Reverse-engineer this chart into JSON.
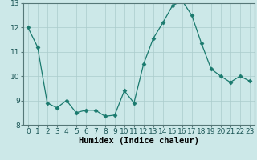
{
  "x": [
    0,
    1,
    2,
    3,
    4,
    5,
    6,
    7,
    8,
    9,
    10,
    11,
    12,
    13,
    14,
    15,
    16,
    17,
    18,
    19,
    20,
    21,
    22,
    23
  ],
  "y": [
    12.0,
    11.2,
    8.9,
    8.7,
    9.0,
    8.5,
    8.6,
    8.6,
    8.35,
    8.4,
    9.4,
    8.9,
    10.5,
    11.55,
    12.2,
    12.9,
    13.1,
    12.5,
    11.35,
    10.3,
    10.0,
    9.75,
    10.0,
    9.8
  ],
  "line_color": "#1a7a6e",
  "marker": "D",
  "marker_size": 2.5,
  "bg_color": "#cce8e8",
  "grid_color": "#aacccc",
  "xlabel": "Humidex (Indice chaleur)",
  "xlim": [
    -0.5,
    23.5
  ],
  "ylim": [
    8,
    13
  ],
  "yticks": [
    8,
    9,
    10,
    11,
    12,
    13
  ],
  "xticks": [
    0,
    1,
    2,
    3,
    4,
    5,
    6,
    7,
    8,
    9,
    10,
    11,
    12,
    13,
    14,
    15,
    16,
    17,
    18,
    19,
    20,
    21,
    22,
    23
  ],
  "xlabel_fontsize": 7.5,
  "tick_fontsize": 6.5
}
